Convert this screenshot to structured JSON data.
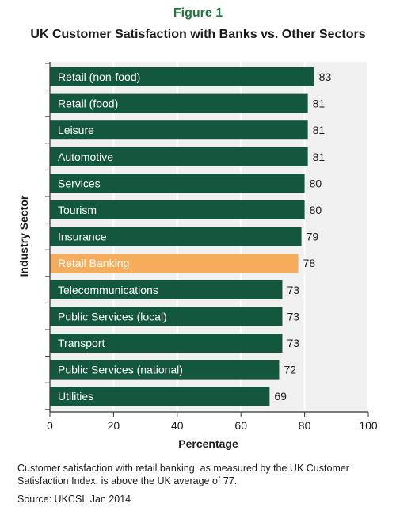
{
  "figure_label": "Figure 1",
  "caption": "Customer satisfaction with retail banking, as measured by the UK Customer Satisfaction Index, is above the UK average of 77.",
  "source": "Source: UKCSI, Jan 2014",
  "colors": {
    "bar": "#14573f",
    "highlight_bar": "#f6ad5b",
    "plot_background": "#f0f0f0",
    "title_accent": "#1a7a3a"
  },
  "chart_data": {
    "type": "bar",
    "orientation": "horizontal",
    "title": "UK Customer Satisfaction with Banks vs. Other Sectors",
    "xlabel": "Percentage",
    "ylabel": "Industry Sector",
    "xlim": [
      0,
      100
    ],
    "xticks": [
      0,
      20,
      40,
      60,
      80,
      100
    ],
    "grid": true,
    "highlight": "Retail Banking",
    "categories": [
      "Retail (non-food)",
      "Retail (food)",
      "Leisure",
      "Automotive",
      "Services",
      "Tourism",
      "Insurance",
      "Retail Banking",
      "Telecommunications",
      "Public Services (local)",
      "Transport",
      "Public Services (national)",
      "Utilities"
    ],
    "values": [
      83,
      81,
      81,
      81,
      80,
      80,
      79,
      78,
      73,
      73,
      73,
      72,
      69
    ]
  }
}
